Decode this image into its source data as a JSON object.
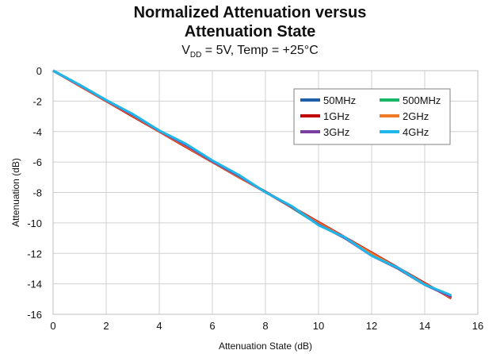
{
  "chart_data": {
    "type": "line",
    "title_line1": "Normalized Attenuation versus",
    "title_line2": "Attenuation State",
    "subtitle": {
      "v": "V",
      "sub": "DD",
      "rest": " = 5V, Temp = +25°C"
    },
    "xlabel": "Attenuation State (dB)",
    "ylabel": "Attenuation (dB)",
    "xlim": [
      0,
      16
    ],
    "ylim": [
      -16,
      0
    ],
    "xticks": [
      0,
      2,
      4,
      6,
      8,
      10,
      12,
      14,
      16
    ],
    "yticks": [
      0,
      -2,
      -4,
      -6,
      -8,
      -10,
      -12,
      -14,
      -16
    ],
    "grid": true,
    "legend_position": "top-right",
    "x": [
      0,
      1,
      2,
      3,
      4,
      5,
      6,
      7,
      8,
      9,
      10,
      11,
      12,
      13,
      14,
      15
    ],
    "series": [
      {
        "name": "50MHz",
        "color": "#1F5FA6",
        "values": [
          0,
          -0.95,
          -1.95,
          -2.9,
          -3.95,
          -4.9,
          -5.95,
          -6.95,
          -7.95,
          -9.0,
          -10.1,
          -11.0,
          -12.1,
          -13.0,
          -14.05,
          -14.85
        ]
      },
      {
        "name": "500MHz",
        "color": "#19B868",
        "values": [
          0,
          -0.95,
          -1.95,
          -2.9,
          -3.95,
          -4.9,
          -5.95,
          -6.95,
          -7.95,
          -9.0,
          -10.1,
          -11.0,
          -12.1,
          -13.0,
          -14.05,
          -14.85
        ]
      },
      {
        "name": "1GHz",
        "color": "#C00000",
        "values": [
          0,
          -1.0,
          -2.0,
          -3.0,
          -4.0,
          -5.0,
          -6.0,
          -7.0,
          -7.95,
          -8.95,
          -9.95,
          -10.95,
          -11.95,
          -12.95,
          -13.95,
          -14.95
        ]
      },
      {
        "name": "2GHz",
        "color": "#F07B26",
        "values": [
          0,
          -0.98,
          -1.98,
          -2.95,
          -3.98,
          -4.95,
          -5.98,
          -6.98,
          -7.98,
          -8.98,
          -10.0,
          -10.98,
          -12.0,
          -12.98,
          -14.0,
          -14.9
        ]
      },
      {
        "name": "3GHz",
        "color": "#7B3FA0",
        "values": [
          0,
          -0.95,
          -1.95,
          -2.9,
          -3.95,
          -4.88,
          -5.95,
          -6.92,
          -7.98,
          -8.95,
          -10.1,
          -11.0,
          -12.15,
          -13.0,
          -14.05,
          -14.85
        ]
      },
      {
        "name": "4GHz",
        "color": "#1FB7EA",
        "values": [
          0,
          -0.93,
          -1.93,
          -2.85,
          -3.93,
          -4.8,
          -5.9,
          -6.85,
          -7.98,
          -8.9,
          -10.15,
          -10.95,
          -12.15,
          -12.95,
          -14.05,
          -14.75
        ]
      }
    ]
  }
}
